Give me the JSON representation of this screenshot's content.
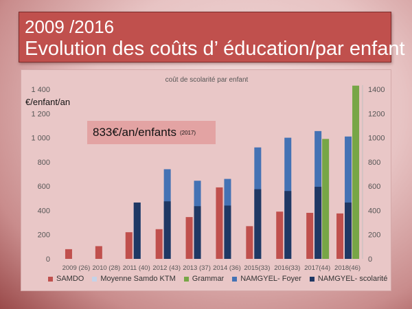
{
  "slide": {
    "title_line1": "2009 /2016",
    "title_line2": "Evolution des coûts d’ éducation/par enfant"
  },
  "unit_label": "€/enfant/an",
  "callout": {
    "main": "833€/an/enfants",
    "sub": "(2017)"
  },
  "colors": {
    "samdo": "#c0504d",
    "moyenne": "#c5d3e8",
    "grammar": "#77a646",
    "foyer": "#4472b4",
    "scolarite": "#1f3864"
  },
  "chart_data": {
    "type": "bar",
    "title": "coût de scolarité par enfant",
    "categories": [
      "2009 (26)",
      "2010 (28)",
      "2011 (40)",
      "2012 (43)",
      "2013 (37)",
      "2014 (36)",
      "2015(33)",
      "2016(33)",
      "2017(44)",
      "2018(46)"
    ],
    "series": [
      {
        "name": "SAMDO",
        "color_key": "samdo",
        "values": [
          80,
          105,
          220,
          245,
          345,
          590,
          270,
          390,
          380,
          375
        ]
      },
      {
        "name": "Moyenne Samdo KTM",
        "color_key": "moyenne",
        "values": [
          0,
          0,
          0,
          0,
          0,
          0,
          0,
          0,
          0,
          0
        ]
      },
      {
        "name": "Grammar",
        "color_key": "grammar",
        "values": [
          0,
          0,
          0,
          0,
          0,
          0,
          0,
          0,
          990,
          1430
        ]
      },
      {
        "name": "NAMGYEL- Foyer",
        "color_key": "foyer",
        "values": [
          0,
          0,
          465,
          740,
          645,
          660,
          920,
          1000,
          1055,
          1010
        ]
      },
      {
        "name": "NAMGYEL- scolarité",
        "color_key": "scolarite",
        "values": [
          0,
          0,
          465,
          475,
          435,
          440,
          575,
          560,
          595,
          465
        ]
      }
    ],
    "ylim": [
      0,
      1400
    ],
    "y_ticks_left": [
      "0",
      "200",
      "400",
      "600",
      "800",
      "1 000",
      "1 200",
      "1 400"
    ],
    "y_ticks_right": [
      "0",
      "200",
      "400",
      "600",
      "800",
      "1000",
      "1200",
      "1400"
    ],
    "legend_position": "bottom"
  }
}
